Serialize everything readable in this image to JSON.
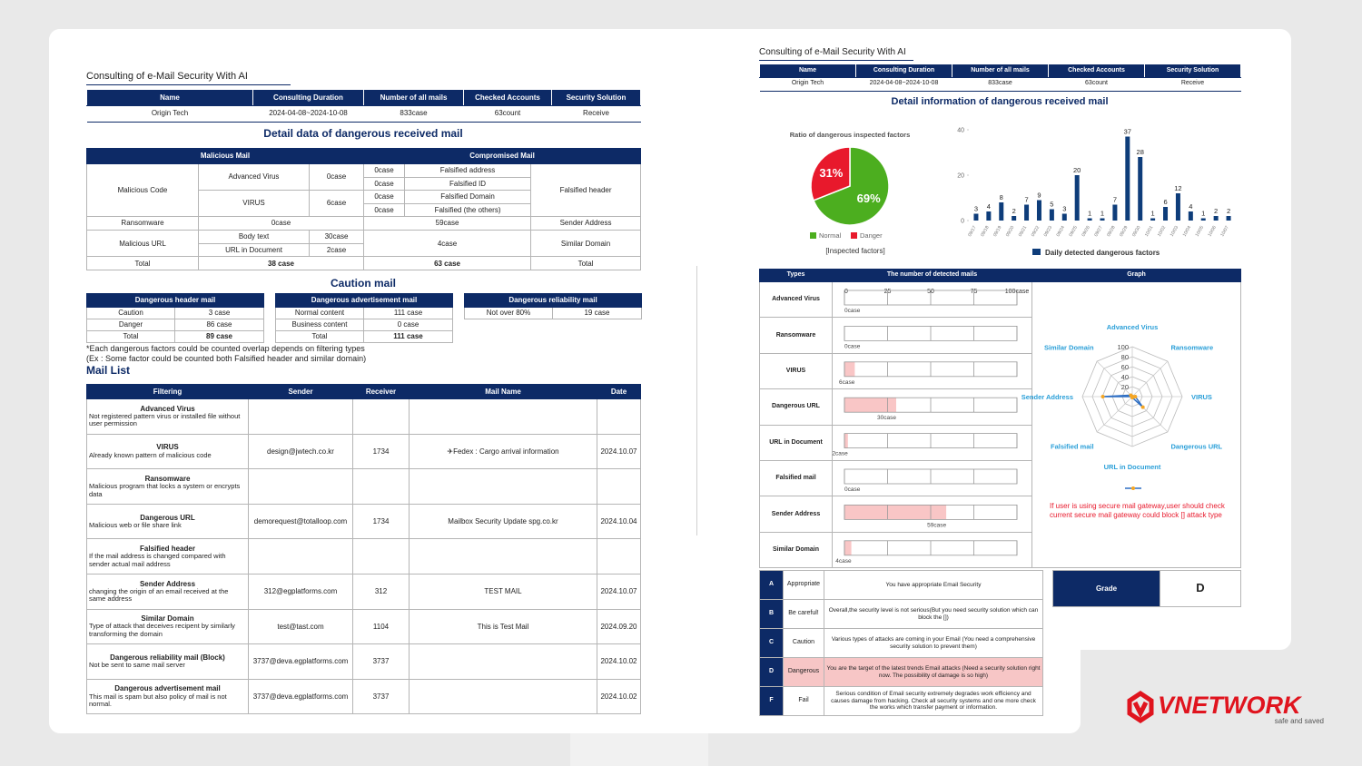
{
  "left": {
    "title": "Consulting of e-Mail Security With AI",
    "info": {
      "headers": [
        "Name",
        "Consulting Duration",
        "Number of all mails",
        "Checked Accounts",
        "Security Solution"
      ],
      "row": [
        "Origin Tech",
        "2024-04-08~2024-10-08",
        "833case",
        "63count",
        "Receive"
      ]
    },
    "detail_title": "Detail data of dangerous received mail",
    "detail_table": {
      "headers": [
        "Malicious Mail",
        "Compromised Mail"
      ],
      "rows": [
        [
          "Malicious Code",
          "Advanced Virus",
          "0case",
          "0case",
          "Falsified address",
          "Falsified header"
        ],
        [
          "0case",
          "Falsified ID"
        ],
        [
          "VIRUS",
          "6case",
          "0case",
          "Falsified Domain"
        ],
        [
          "0case",
          "Falsified (the others)"
        ],
        [
          "Ransomware",
          "0case",
          "59case",
          "Sender Address"
        ],
        [
          "Malicious URL",
          "Body text",
          "30case",
          "4case",
          "Similar Domain"
        ],
        [
          "URL in Document",
          "2case"
        ],
        [
          "Total",
          "38 case",
          "63 case",
          "Total"
        ]
      ]
    },
    "caution_title": "Caution mail",
    "caution_tables": [
      {
        "header": "Dangerous header mail",
        "rows": [
          [
            "Caution",
            "3 case"
          ],
          [
            "Danger",
            "86 case"
          ],
          [
            "Total",
            "89 case"
          ]
        ]
      },
      {
        "header": "Dangerous advertisement mail",
        "rows": [
          [
            "Normal content",
            "111 case"
          ],
          [
            "Business content",
            "0 case"
          ],
          [
            "Total",
            "111 case"
          ]
        ]
      },
      {
        "header": "Dangerous reliability mail",
        "rows": [
          [
            "Not over 80%",
            "19 case"
          ]
        ]
      }
    ],
    "notes": [
      "*Each dangerous factors could be counted overlap depends on filtering types",
      "(Ex : Some factor could be counted both Falsified header and similar domain)"
    ],
    "mail_list_title": "Mail List",
    "mail_list": {
      "headers": [
        "Filtering",
        "Sender",
        "Receiver",
        "Mail Name",
        "Date"
      ],
      "rows": [
        {
          "filter": "Advanced Virus",
          "description": "Not registered pattern virus or installed file without user permission",
          "sender": null,
          "receiver": null,
          "mail_name": null,
          "date": null
        },
        {
          "filter": "VIRUS",
          "description": "Already known pattern of malicious code",
          "sender": "design@jwtech.co.kr",
          "receiver": "1734",
          "mail_name": "✈Fedex : Cargo arrival information",
          "date": "2024.10.07"
        },
        {
          "filter": "Ransomware",
          "description": "Malicious program that locks a system or encrypts data",
          "sender": null,
          "receiver": null,
          "mail_name": null,
          "date": null
        },
        {
          "filter": "Dangerous URL",
          "description": "Malicious web or file share link",
          "sender": "demorequest@totalloop.com",
          "receiver": "1734",
          "mail_name": "Mailbox Security Update spg.co.kr",
          "date": "2024.10.04"
        },
        {
          "filter": "Falsified header",
          "description": "If the mail address is changed compared with sender actual mail address",
          "sender": null,
          "receiver": null,
          "mail_name": null,
          "date": null
        },
        {
          "filter": "Sender Address",
          "description": "changing the origin of an email received at the same address",
          "sender": "312@egplatforms.com",
          "receiver": "312",
          "mail_name": "TEST MAIL",
          "date": "2024.10.07"
        },
        {
          "filter": "Similar Domain",
          "description": "Type of attack that deceives recipent by similarly transforming the domain",
          "sender": "test@tast.com",
          "receiver": "1104",
          "mail_name": "This is Test Mail",
          "date": "2024.09.20"
        },
        {
          "filter": "Dangerous reliability mail (Block)",
          "description": "Not be sent to same mail server",
          "sender": "3737@deva.egplatforms.com",
          "receiver": "3737",
          "mail_name": null,
          "date": "2024.10.02"
        },
        {
          "filter": "Dangerous advertisement mail",
          "description": "This mail is spam but also policy of mail is not normal.",
          "sender": "3737@deva.egplatforms.com",
          "receiver": "3737",
          "mail_name": null,
          "date": "2024.10.02"
        }
      ]
    }
  },
  "right": {
    "title": "Consulting of e-Mail Security With AI",
    "info": {
      "headers": [
        "Name",
        "Consulting Duration",
        "Number of all mails",
        "Checked Accounts",
        "Security Solution"
      ],
      "row": [
        "Origin Tech",
        "2024-04-08~2024-10-08",
        "833case",
        "63count",
        "Receive"
      ]
    },
    "detail_title": "Detail information of dangerous received mail",
    "pie": {
      "type": "pie",
      "title": "Ratio of dangerous inspected factors",
      "categories": [
        "Normal",
        "Danger"
      ],
      "values": [
        69,
        31
      ],
      "value_labels": [
        "69%",
        "31%"
      ],
      "colors": [
        "#4cae1f",
        "#e8192c"
      ],
      "caption": "[Inspected factors]"
    },
    "bar": {
      "type": "bar",
      "categories": [
        "09/17",
        "09/18",
        "09/19",
        "09/20",
        "09/21",
        "09/22",
        "09/23",
        "09/24",
        "09/25",
        "09/26",
        "09/27",
        "09/28",
        "09/29",
        "09/30",
        "10/01",
        "10/02",
        "10/03",
        "10/04",
        "10/05",
        "10/06",
        "10/07"
      ],
      "series": [
        {
          "name": "Daily detected dangerous factors",
          "color": "#0e3d7a",
          "values": [
            3,
            4,
            8,
            2,
            7,
            9,
            5,
            3,
            20,
            1,
            1,
            7,
            37,
            28,
            1,
            6,
            12,
            4,
            1,
            2,
            2
          ]
        }
      ],
      "ylim": [
        0,
        40
      ],
      "yticks": [
        0,
        20,
        40
      ]
    },
    "detected": {
      "type": "bar",
      "orientation": "horizontal",
      "headers": [
        "Types",
        "The number of detected mails",
        "Graph"
      ],
      "categories": [
        "Advanced Virus",
        "Ransomware",
        "VIRUS",
        "Dangerous URL",
        "URL in Document",
        "Falsified mail",
        "Sender Address",
        "Similar Domain"
      ],
      "values": [
        0,
        0,
        6,
        30,
        2,
        0,
        59,
        4
      ],
      "value_labels": [
        "0case",
        "0case",
        "6case",
        "30case",
        "2case",
        "0case",
        "59case",
        "4case"
      ],
      "xlim": [
        0,
        100
      ],
      "xticks": [
        0,
        25,
        50,
        75,
        {
          "value": 100,
          "label": "100case"
        }
      ],
      "color": "#f9c6c6"
    },
    "radar": {
      "type": "radar",
      "categories": [
        "Advanced Virus",
        "Ransomware",
        "VIRUS",
        "Dangerous URL",
        "URL in Document",
        "Falsified mail",
        "Sender Address",
        "Similar Domain"
      ],
      "values": [
        0,
        0,
        6,
        30,
        2,
        0,
        59,
        4
      ],
      "rlim": [
        0,
        100
      ],
      "rticks": [
        20,
        40,
        60,
        80,
        100
      ],
      "color": "#2f6fc4",
      "point_color": "#f5a623",
      "label_color": "#2a9fd8",
      "note": "If user is using secure mail gateway,user should check current secure mail gateway could block [] attack type"
    },
    "grades": {
      "rows": [
        {
          "letter": "A",
          "label": "Appropriate",
          "description": "You have appropriate Email Security"
        },
        {
          "letter": "B",
          "label": "Be careful!",
          "description": "Overall,the security level is not serious(But you need security solution which can block the [])"
        },
        {
          "letter": "C",
          "label": "Caution",
          "description": "Various types of attacks are coming in your Email (You need a comprehensive security solution to prevent them)"
        },
        {
          "letter": "D",
          "label": "Dangerous",
          "description": "You are the target of the latest trends Email attacks (Need a security solution right now. The possibility of damage is so high)"
        },
        {
          "letter": "F",
          "label": "Fail",
          "description": "Serious condition of Email security extremely degrades work efficiency and causes damage from hacking. Check all security systems and one more check the works which transfer payment or information."
        }
      ],
      "highlight": "D"
    },
    "grade_box": {
      "label": "Grade",
      "value": "D"
    }
  },
  "brand": {
    "name": "VNETWORK",
    "tagline": "safe and saved"
  }
}
